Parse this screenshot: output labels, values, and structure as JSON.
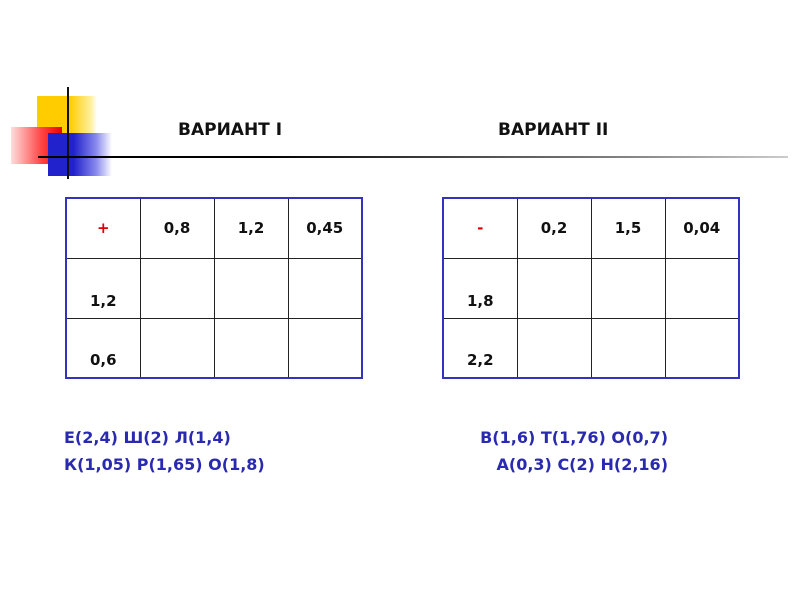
{
  "variant1": {
    "title": "ВАРИАНТ I",
    "operator": "+",
    "columns": [
      "0,8",
      "1,2",
      "0,45"
    ],
    "rows": [
      "1,2",
      "0,6"
    ],
    "answers": [
      "Е(2,4) Ш(2) Л(1,4)",
      "К(1,05) Р(1,65) О(1,8)"
    ]
  },
  "variant2": {
    "title": "ВАРИАНТ II",
    "operator": "-",
    "columns": [
      "0,2",
      "1,5",
      "0,04"
    ],
    "rows": [
      "1,8",
      "2,2"
    ],
    "answers": [
      "В(1,6) Т(1,76) О(0,7)",
      "А(0,3) С(2) Н(2,16)"
    ]
  },
  "colors": {
    "text_blue": "#2a2ab0",
    "operator_red": "#dd0000",
    "table_border": "#3333bb"
  }
}
